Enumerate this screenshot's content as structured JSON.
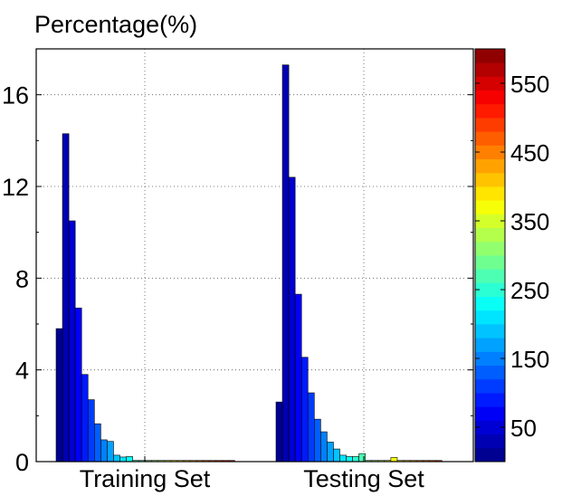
{
  "chart_data": {
    "type": "bar",
    "title": "",
    "ylabel": "Percentage(%)",
    "xlabel": "",
    "ylim": [
      0,
      18
    ],
    "yticks": [
      0,
      4,
      8,
      12,
      16
    ],
    "grid": true,
    "groups": [
      {
        "name": "Training Set",
        "bin_width": 20,
        "values": [
          5.8,
          14.3,
          10.5,
          6.7,
          3.8,
          2.7,
          1.65,
          0.95,
          0.88,
          0.28,
          0.2,
          0.22,
          0.05,
          0.05,
          0.05,
          0.05,
          0.05,
          0.05,
          0.05,
          0.05,
          0.05,
          0.05,
          0.05,
          0.05,
          0.05,
          0.05,
          0.05,
          0.05
        ]
      },
      {
        "name": "Testing Set",
        "bin_width": 20,
        "values": [
          2.6,
          17.3,
          12.4,
          7.3,
          4.55,
          3.0,
          1.85,
          1.3,
          0.85,
          0.55,
          0.28,
          0.22,
          0.22,
          0.35,
          0.05,
          0.05,
          0.05,
          0.05,
          0.18,
          0.05,
          0.05,
          0.05,
          0.05,
          0.05,
          0.05,
          0.05
        ]
      }
    ],
    "colorbar": {
      "range": [
        0,
        600
      ],
      "ticks": [
        50,
        150,
        250,
        350,
        450,
        550
      ],
      "colormap": "jet",
      "levels": 30
    }
  }
}
